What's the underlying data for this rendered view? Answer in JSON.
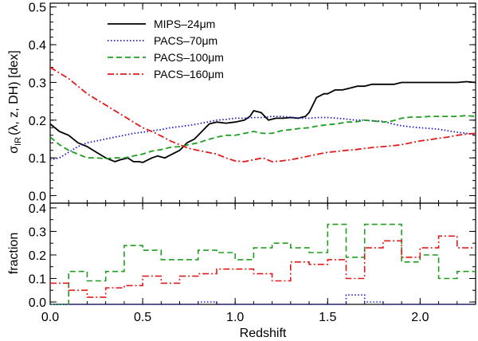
{
  "chart_data": [
    {
      "type": "line",
      "panel": "top",
      "ylabel": "σIR(λ, z, DH) [dex]",
      "ylabel_parts": {
        "sigma": "σ",
        "sub": "IR",
        "rest": "(λ,  z,  DH) [dex]"
      },
      "xlim": [
        0.0,
        2.3
      ],
      "ylim": [
        -0.02,
        0.51
      ],
      "yticks": [
        0.0,
        0.1,
        0.2,
        0.3,
        0.4,
        0.5
      ],
      "ytick_labels": [
        "0.0",
        "0.1",
        "0.2",
        "0.3",
        "0.4",
        "0.5"
      ],
      "legend_position": "top-left",
      "series": [
        {
          "name": "MIPS–24μm",
          "color": "#000000",
          "dash": "solid",
          "x": [
            0.0,
            0.05,
            0.1,
            0.15,
            0.2,
            0.25,
            0.3,
            0.35,
            0.38,
            0.42,
            0.45,
            0.48,
            0.5,
            0.55,
            0.58,
            0.62,
            0.66,
            0.7,
            0.74,
            0.78,
            0.82,
            0.86,
            0.9,
            0.95,
            1.0,
            1.05,
            1.08,
            1.1,
            1.14,
            1.18,
            1.22,
            1.26,
            1.3,
            1.34,
            1.38,
            1.4,
            1.44,
            1.48,
            1.5,
            1.54,
            1.58,
            1.62,
            1.66,
            1.7,
            1.74,
            1.78,
            1.82,
            1.86,
            1.9,
            1.95,
            2.0,
            2.05,
            2.1,
            2.15,
            2.2,
            2.25,
            2.3
          ],
          "values": [
            0.19,
            0.17,
            0.16,
            0.14,
            0.13,
            0.115,
            0.1,
            0.09,
            0.095,
            0.1,
            0.09,
            0.09,
            0.088,
            0.1,
            0.105,
            0.1,
            0.11,
            0.12,
            0.14,
            0.15,
            0.17,
            0.19,
            0.195,
            0.192,
            0.195,
            0.2,
            0.21,
            0.225,
            0.22,
            0.2,
            0.205,
            0.205,
            0.207,
            0.205,
            0.21,
            0.22,
            0.26,
            0.27,
            0.27,
            0.28,
            0.28,
            0.285,
            0.29,
            0.29,
            0.295,
            0.295,
            0.295,
            0.295,
            0.3,
            0.3,
            0.3,
            0.3,
            0.3,
            0.3,
            0.3,
            0.302,
            0.3
          ]
        },
        {
          "name": "PACS–70μm",
          "color": "#1a1acc",
          "dash": "dotted",
          "x": [
            0.0,
            0.05,
            0.1,
            0.15,
            0.2,
            0.25,
            0.3,
            0.35,
            0.4,
            0.45,
            0.5,
            0.55,
            0.6,
            0.65,
            0.7,
            0.75,
            0.8,
            0.85,
            0.9,
            0.95,
            1.0,
            1.05,
            1.1,
            1.15,
            1.2,
            1.25,
            1.3,
            1.35,
            1.4,
            1.45,
            1.5,
            1.55,
            1.6,
            1.65,
            1.7,
            1.75,
            1.8,
            1.85,
            1.9,
            1.95,
            2.0,
            2.05,
            2.1,
            2.15,
            2.2,
            2.25,
            2.3
          ],
          "values": [
            0.095,
            0.1,
            0.115,
            0.13,
            0.14,
            0.145,
            0.15,
            0.155,
            0.16,
            0.165,
            0.168,
            0.172,
            0.175,
            0.18,
            0.183,
            0.186,
            0.19,
            0.195,
            0.2,
            0.202,
            0.205,
            0.205,
            0.207,
            0.207,
            0.21,
            0.21,
            0.208,
            0.205,
            0.205,
            0.207,
            0.207,
            0.205,
            0.203,
            0.2,
            0.2,
            0.198,
            0.197,
            0.19,
            0.185,
            0.182,
            0.18,
            0.178,
            0.176,
            0.172,
            0.168,
            0.165,
            0.162
          ]
        },
        {
          "name": "PACS–100μm",
          "color": "#1f9e1f",
          "dash": "dashed",
          "x": [
            0.0,
            0.05,
            0.1,
            0.15,
            0.2,
            0.25,
            0.3,
            0.35,
            0.4,
            0.45,
            0.5,
            0.55,
            0.6,
            0.65,
            0.7,
            0.75,
            0.8,
            0.85,
            0.9,
            0.95,
            1.0,
            1.05,
            1.1,
            1.15,
            1.2,
            1.25,
            1.3,
            1.35,
            1.4,
            1.45,
            1.5,
            1.55,
            1.6,
            1.65,
            1.7,
            1.75,
            1.8,
            1.85,
            1.9,
            1.95,
            2.0,
            2.05,
            2.1,
            2.15,
            2.2,
            2.25,
            2.3
          ],
          "values": [
            0.155,
            0.135,
            0.12,
            0.11,
            0.1,
            0.1,
            0.098,
            0.1,
            0.1,
            0.105,
            0.11,
            0.118,
            0.122,
            0.128,
            0.13,
            0.135,
            0.14,
            0.148,
            0.155,
            0.16,
            0.16,
            0.165,
            0.17,
            0.165,
            0.165,
            0.172,
            0.175,
            0.178,
            0.18,
            0.185,
            0.188,
            0.19,
            0.195,
            0.195,
            0.2,
            0.198,
            0.195,
            0.198,
            0.205,
            0.208,
            0.208,
            0.21,
            0.21,
            0.21,
            0.21,
            0.212,
            0.21
          ]
        },
        {
          "name": "PACS–160μm",
          "color": "#e01b1b",
          "dash": "dashdot",
          "x": [
            0.0,
            0.05,
            0.1,
            0.15,
            0.2,
            0.25,
            0.3,
            0.35,
            0.4,
            0.45,
            0.5,
            0.55,
            0.6,
            0.65,
            0.7,
            0.75,
            0.8,
            0.85,
            0.9,
            0.95,
            1.0,
            1.05,
            1.1,
            1.15,
            1.2,
            1.25,
            1.3,
            1.35,
            1.4,
            1.45,
            1.5,
            1.55,
            1.6,
            1.65,
            1.7,
            1.75,
            1.8,
            1.85,
            1.9,
            1.95,
            2.0,
            2.05,
            2.1,
            2.15,
            2.2,
            2.25,
            2.3
          ],
          "values": [
            0.34,
            0.325,
            0.31,
            0.29,
            0.27,
            0.255,
            0.24,
            0.225,
            0.21,
            0.195,
            0.18,
            0.17,
            0.158,
            0.145,
            0.135,
            0.125,
            0.12,
            0.115,
            0.11,
            0.1,
            0.092,
            0.09,
            0.095,
            0.1,
            0.09,
            0.092,
            0.095,
            0.1,
            0.105,
            0.11,
            0.115,
            0.117,
            0.12,
            0.122,
            0.125,
            0.128,
            0.13,
            0.132,
            0.135,
            0.14,
            0.145,
            0.148,
            0.152,
            0.155,
            0.16,
            0.163,
            0.165
          ]
        }
      ]
    },
    {
      "type": "step",
      "panel": "bottom",
      "xlabel": "Redshift",
      "ylabel": "fraction",
      "xlim": [
        0.0,
        2.3
      ],
      "ylim": [
        -0.01,
        0.42
      ],
      "xticks": [
        0.0,
        0.5,
        1.0,
        1.5,
        2.0
      ],
      "xtick_labels": [
        "0.0",
        "0.5",
        "1.0",
        "1.5",
        "2.0"
      ],
      "yticks": [
        0.0,
        0.1,
        0.2,
        0.3,
        0.4
      ],
      "ytick_labels": [
        "0.0",
        "0.1",
        "0.2",
        "0.3",
        "0.4"
      ],
      "bin_edges": [
        0.0,
        0.1,
        0.2,
        0.3,
        0.4,
        0.5,
        0.6,
        0.7,
        0.8,
        0.9,
        1.0,
        1.1,
        1.2,
        1.3,
        1.4,
        1.5,
        1.6,
        1.7,
        1.8,
        1.9,
        2.0,
        2.1,
        2.2,
        2.3
      ],
      "series": [
        {
          "name": "PACS–100μm",
          "color": "#1f9e1f",
          "dash": "dashed",
          "values": [
            -0.01,
            0.13,
            0.09,
            0.13,
            0.24,
            0.22,
            0.18,
            0.18,
            0.22,
            0.21,
            0.18,
            0.23,
            0.25,
            0.23,
            0.21,
            0.33,
            0.19,
            0.33,
            0.33,
            0.17,
            0.2,
            0.1,
            0.13
          ]
        },
        {
          "name": "PACS–160μm",
          "color": "#e01b1b",
          "dash": "dashdot",
          "values": [
            0.08,
            0.05,
            0.02,
            0.06,
            0.07,
            0.11,
            0.08,
            0.11,
            0.12,
            0.14,
            0.14,
            0.12,
            0.09,
            0.17,
            0.16,
            0.18,
            0.1,
            0.23,
            0.26,
            0.19,
            0.23,
            0.28,
            0.23
          ]
        },
        {
          "name": "PACS–70μm",
          "color": "#1a1acc",
          "dash": "dotted",
          "values": [
            -0.01,
            -0.01,
            -0.01,
            -0.01,
            -0.01,
            -0.01,
            -0.01,
            -0.01,
            0.0,
            -0.01,
            -0.01,
            -0.01,
            -0.01,
            -0.01,
            -0.01,
            -0.01,
            0.03,
            0.0,
            -0.01,
            -0.01,
            -0.01,
            -0.01,
            -0.01
          ]
        }
      ]
    }
  ]
}
